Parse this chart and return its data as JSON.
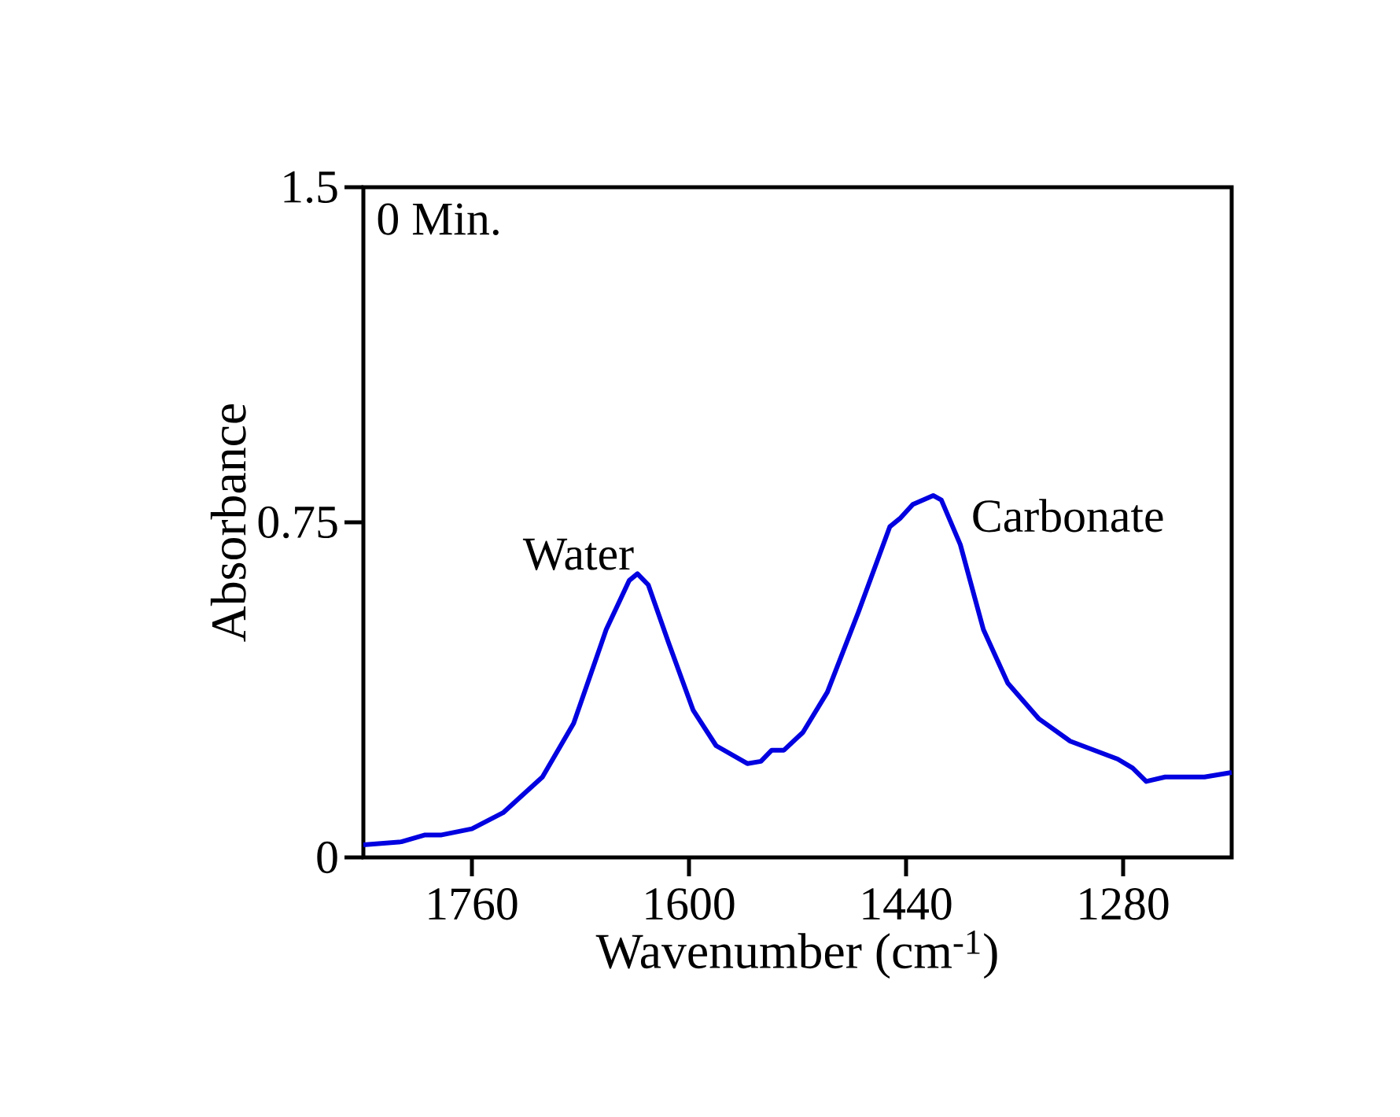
{
  "chart_data": {
    "type": "line",
    "xlabel": "Wavenumber (cm$^{-1}$)",
    "ylabel": "Absorbance",
    "xlim": [
      1840,
      1200
    ],
    "ylim": [
      0,
      1.5
    ],
    "xticks": [
      1760,
      1600,
      1440,
      1280
    ],
    "yticks": [
      0,
      0.75,
      1.5
    ],
    "annotations": [
      "0 Min.",
      {
        "text": "Water",
        "x": 1638,
        "y": 0.635
      },
      {
        "text": "Carbonate",
        "x": 1420,
        "y": 0.81
      }
    ],
    "series": [
      {
        "color": "#0000e0",
        "x": [
          1840,
          1812,
          1795,
          1783,
          1760,
          1737,
          1708,
          1685,
          1661,
          1644,
          1638,
          1630,
          1615,
          1597,
          1580,
          1557,
          1547,
          1539,
          1530,
          1516,
          1498,
          1475,
          1452,
          1444,
          1435,
          1420,
          1414,
          1400,
          1383,
          1365,
          1342,
          1319,
          1284,
          1273,
          1263,
          1249,
          1220,
          1200
        ],
        "values": [
          0.028,
          0.035,
          0.05,
          0.05,
          0.064,
          0.1,
          0.18,
          0.3,
          0.51,
          0.62,
          0.635,
          0.61,
          0.48,
          0.33,
          0.25,
          0.21,
          0.215,
          0.24,
          0.24,
          0.28,
          0.37,
          0.55,
          0.74,
          0.76,
          0.79,
          0.81,
          0.8,
          0.7,
          0.51,
          0.39,
          0.31,
          0.26,
          0.22,
          0.2,
          0.17,
          0.18,
          0.18,
          0.19
        ]
      }
    ]
  }
}
